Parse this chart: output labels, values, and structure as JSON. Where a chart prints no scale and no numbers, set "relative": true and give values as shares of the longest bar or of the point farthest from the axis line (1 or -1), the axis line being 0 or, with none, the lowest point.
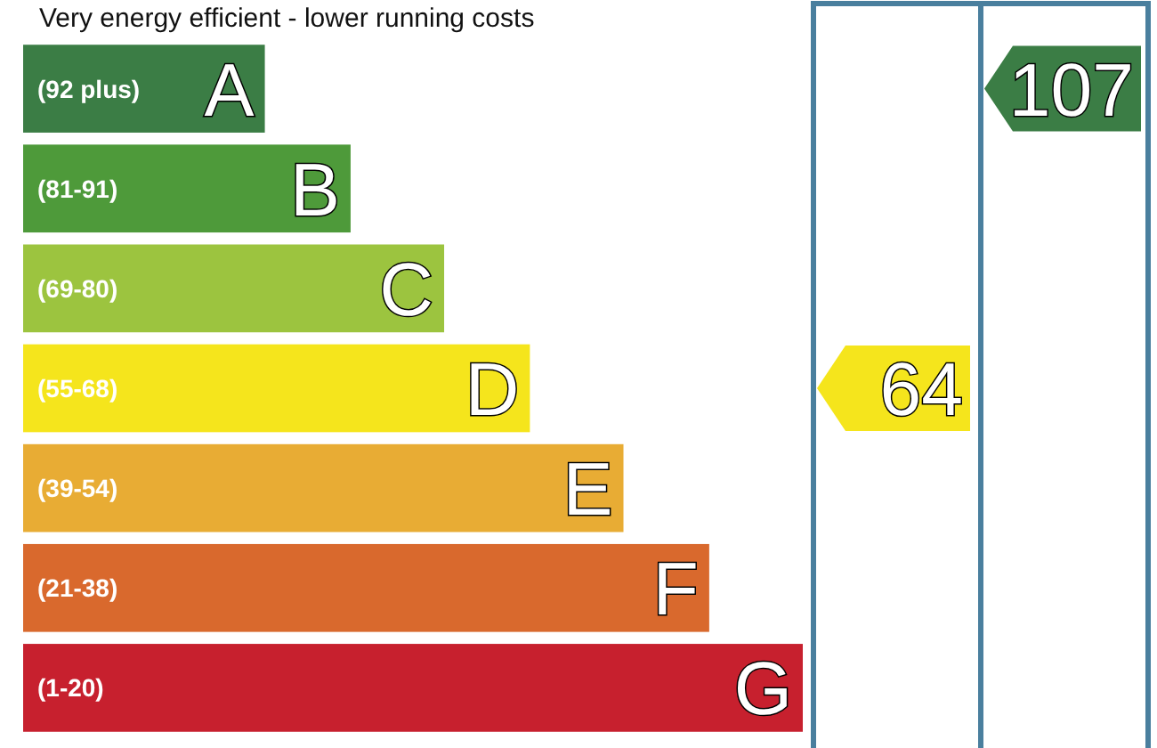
{
  "chart_data": {
    "type": "bar",
    "orientation": "horizontal",
    "relative": true,
    "title": "Very energy efficient - lower running costs",
    "categories": [
      "(92 plus)",
      "(81-91)",
      "(69-80)",
      "(55-68)",
      "(39-54)",
      "(21-38)",
      "(1-20)"
    ],
    "values": [
      0.31,
      0.42,
      0.54,
      0.65,
      0.77,
      0.88,
      1
    ],
    "colors": [
      "#3b7d45",
      "#4e9a3a",
      "#9cc43f",
      "#f5e51c",
      "#e8ac34",
      "#d9692d",
      "#c7202e"
    ],
    "annotations": [
      {
        "text": "A",
        "y": "(92 plus)"
      },
      {
        "text": "B",
        "y": "(81-91)"
      },
      {
        "text": "C",
        "y": "(69-80)"
      },
      {
        "text": "D",
        "y": "(55-68)"
      },
      {
        "text": "E",
        "y": "(39-54)"
      },
      {
        "text": "F",
        "y": "(21-38)"
      },
      {
        "text": "G",
        "y": "(1-20)"
      },
      "64",
      "107"
    ]
  }
}
